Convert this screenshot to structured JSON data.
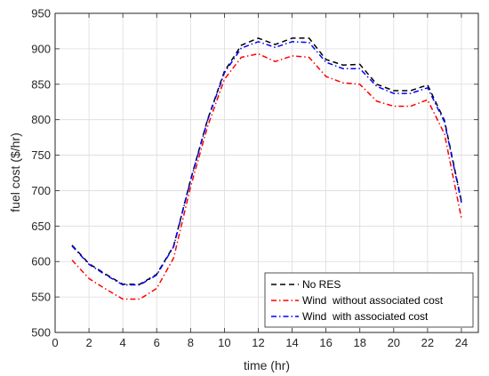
{
  "chart_data": {
    "type": "line",
    "title": "",
    "xlabel": "time (hr)",
    "ylabel": "fuel cost ($/hr)",
    "xlim": [
      0,
      25
    ],
    "ylim": [
      500,
      950
    ],
    "xticks": [
      0,
      2,
      4,
      6,
      8,
      10,
      12,
      14,
      16,
      18,
      20,
      22,
      24
    ],
    "yticks": [
      500,
      550,
      600,
      650,
      700,
      750,
      800,
      850,
      900,
      950
    ],
    "grid": true,
    "legend_position": "bottom-right",
    "x": [
      1,
      2,
      3,
      4,
      5,
      6,
      7,
      8,
      9,
      10,
      11,
      12,
      13,
      14,
      15,
      16,
      17,
      18,
      19,
      20,
      21,
      22,
      23,
      24
    ],
    "series": [
      {
        "name": "No RES",
        "color": "#000000",
        "dash": "dashed",
        "values": [
          623,
          597,
          582,
          568,
          568,
          582,
          622,
          715,
          800,
          868,
          905,
          915,
          906,
          915,
          915,
          885,
          877,
          878,
          850,
          841,
          841,
          849,
          799,
          685
        ]
      },
      {
        "name": "Wind  without associated cost",
        "color": "#ff0000",
        "dash": "dashdot",
        "values": [
          602,
          576,
          561,
          547,
          547,
          562,
          605,
          705,
          790,
          857,
          888,
          893,
          882,
          890,
          888,
          861,
          852,
          850,
          826,
          819,
          819,
          828,
          780,
          661
        ]
      },
      {
        "name": "Wind  with associated cost",
        "color": "#0000ff",
        "dash": "dashdot",
        "values": [
          622,
          596,
          581,
          567,
          567,
          581,
          621,
          714,
          799,
          866,
          901,
          910,
          902,
          910,
          909,
          881,
          872,
          872,
          847,
          837,
          837,
          845,
          797,
          683
        ]
      }
    ]
  }
}
